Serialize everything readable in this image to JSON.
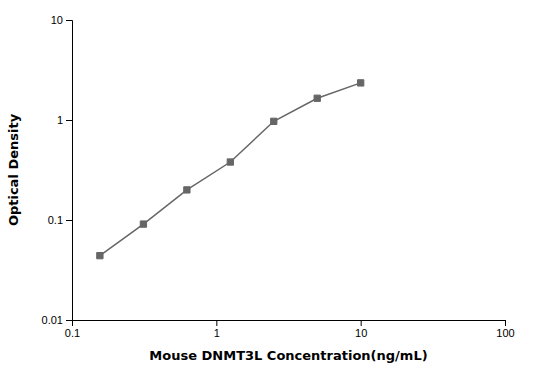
{
  "chart_data": {
    "type": "line",
    "xlabel": "Mouse DNMT3L Concentration(ng/mL)",
    "ylabel": "Optical Density",
    "x": [
      0.156,
      0.3125,
      0.625,
      1.25,
      2.5,
      5.0,
      10.0
    ],
    "series": [
      {
        "values": [
          0.044,
          0.091,
          0.2,
          0.38,
          0.97,
          1.65,
          2.35
        ],
        "color": "#666666",
        "marker": "square"
      }
    ],
    "xlim": [
      0.1,
      100
    ],
    "ylim": [
      0.01,
      10
    ],
    "xticks": [
      0.1,
      1,
      10,
      100
    ],
    "yticks": [
      0.01,
      0.1,
      1,
      10
    ],
    "log": true,
    "grid": false
  }
}
